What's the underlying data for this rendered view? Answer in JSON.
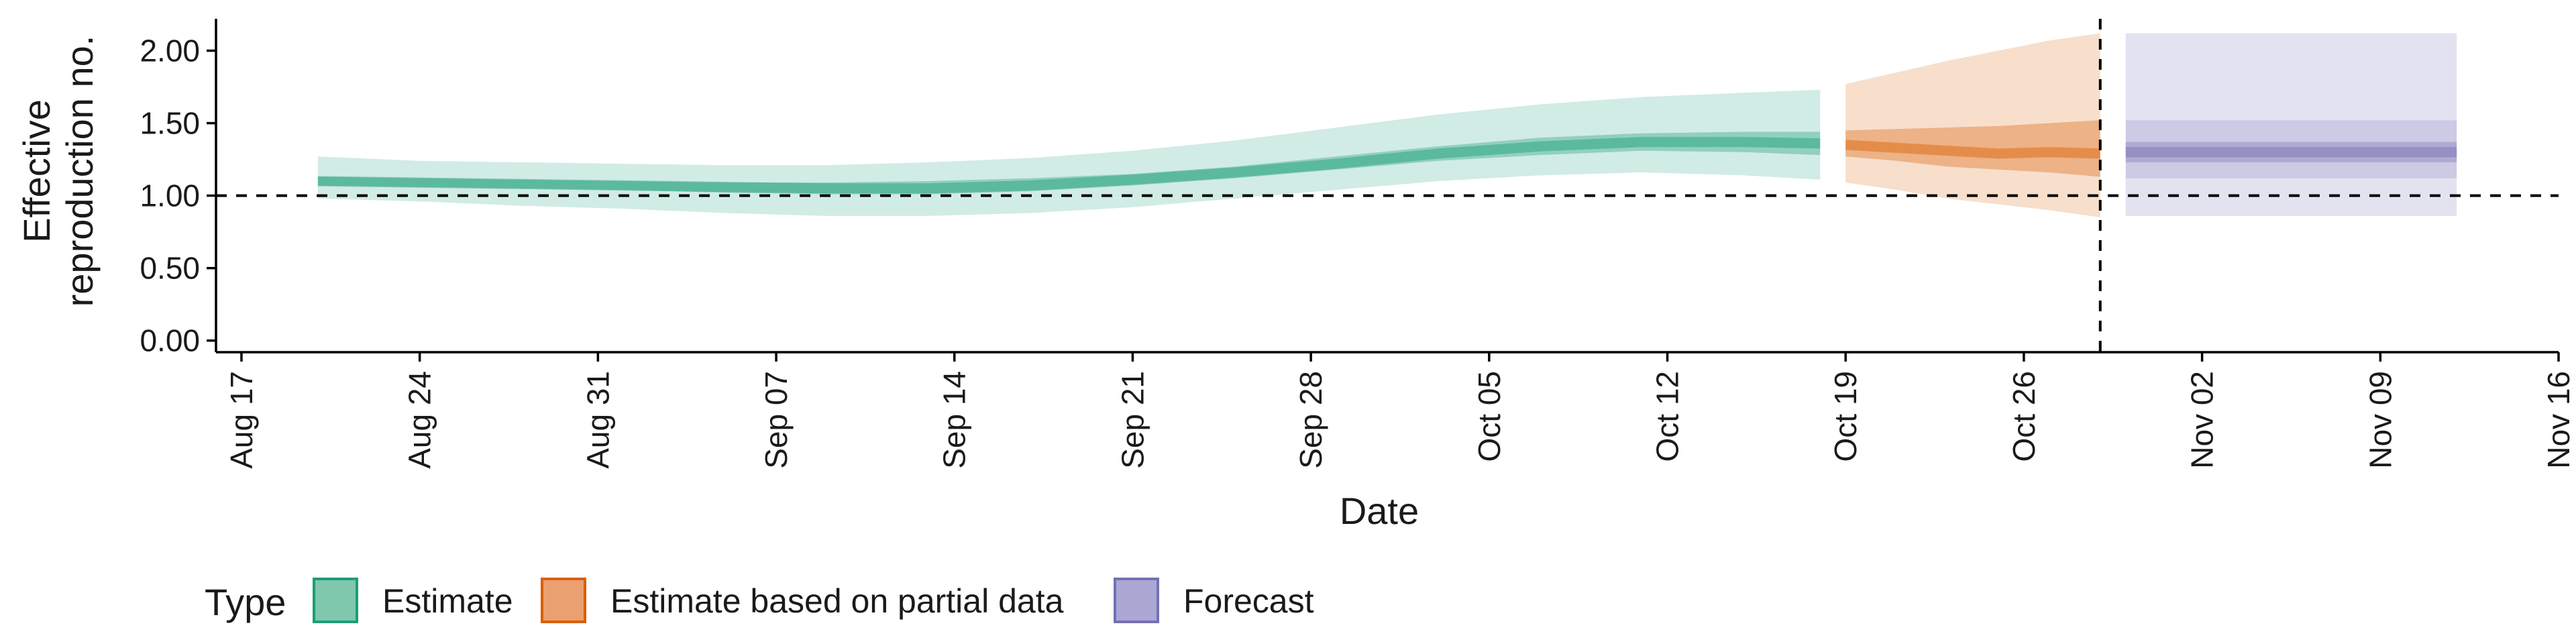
{
  "chart_data": {
    "type": "area",
    "xlabel": "Date",
    "ylabel_lines": [
      "Effective",
      "reproduction no."
    ],
    "ylim": [
      -0.08,
      2.22
    ],
    "yticks": [
      0.0,
      0.5,
      1.0,
      1.5,
      2.0
    ],
    "ytick_labels": [
      "0.00",
      "0.50",
      "1.00",
      "1.50",
      "2.00"
    ],
    "xlim": [
      "2020-08-16",
      "2020-11-16"
    ],
    "xticks": [
      "2020-08-17",
      "2020-08-24",
      "2020-08-31",
      "2020-09-07",
      "2020-09-14",
      "2020-09-21",
      "2020-09-28",
      "2020-10-05",
      "2020-10-12",
      "2020-10-19",
      "2020-10-26",
      "2020-11-02",
      "2020-11-09",
      "2020-11-16"
    ],
    "xtick_labels": [
      "Aug 17",
      "Aug 24",
      "Aug 31",
      "Sep 07",
      "Sep 14",
      "Sep 21",
      "Sep 28",
      "Oct 05",
      "Oct 12",
      "Oct 19",
      "Oct 26",
      "Nov 02",
      "Nov 09",
      "Nov 16"
    ],
    "reference_line_y": 1.0,
    "vertical_line_x": "2020-10-29",
    "legend": {
      "title": "Type",
      "position": "bottom",
      "entries": [
        {
          "label": "Estimate",
          "fill": "#7fc8ae",
          "stroke": "#1b9e77"
        },
        {
          "label": "Estimate based on partial data",
          "fill": "#eba071",
          "stroke": "#d95f02"
        },
        {
          "label": "Forecast",
          "fill": "#aba8d4",
          "stroke": "#7570b3"
        }
      ]
    },
    "series": [
      {
        "name": "Estimate",
        "color": "#1b9e77",
        "x": [
          "2020-08-20",
          "2020-08-24",
          "2020-08-28",
          "2020-09-01",
          "2020-09-05",
          "2020-09-09",
          "2020-09-13",
          "2020-09-17",
          "2020-09-21",
          "2020-09-25",
          "2020-09-29",
          "2020-10-03",
          "2020-10-07",
          "2020-10-11",
          "2020-10-15",
          "2020-10-18"
        ],
        "median": [
          1.1,
          1.09,
          1.08,
          1.07,
          1.06,
          1.05,
          1.05,
          1.07,
          1.11,
          1.16,
          1.22,
          1.29,
          1.34,
          1.37,
          1.37,
          1.36
        ],
        "lower_50": [
          1.07,
          1.06,
          1.05,
          1.04,
          1.02,
          1.01,
          1.01,
          1.03,
          1.07,
          1.12,
          1.18,
          1.24,
          1.28,
          1.31,
          1.3,
          1.28
        ],
        "upper_50": [
          1.13,
          1.12,
          1.11,
          1.1,
          1.09,
          1.09,
          1.1,
          1.12,
          1.15,
          1.2,
          1.27,
          1.34,
          1.4,
          1.43,
          1.44,
          1.44
        ],
        "lower_90": [
          0.98,
          0.96,
          0.93,
          0.91,
          0.88,
          0.86,
          0.86,
          0.88,
          0.92,
          0.98,
          1.04,
          1.1,
          1.14,
          1.16,
          1.14,
          1.11
        ],
        "upper_90": [
          1.27,
          1.24,
          1.23,
          1.22,
          1.21,
          1.21,
          1.23,
          1.26,
          1.31,
          1.38,
          1.47,
          1.56,
          1.63,
          1.68,
          1.71,
          1.73
        ]
      },
      {
        "name": "Estimate based on partial data",
        "color": "#d95f02",
        "x": [
          "2020-10-19",
          "2020-10-21",
          "2020-10-23",
          "2020-10-25",
          "2020-10-27",
          "2020-10-29"
        ],
        "median": [
          1.35,
          1.33,
          1.31,
          1.29,
          1.3,
          1.29
        ],
        "lower_50": [
          1.27,
          1.24,
          1.2,
          1.18,
          1.16,
          1.13
        ],
        "upper_50": [
          1.45,
          1.46,
          1.47,
          1.48,
          1.5,
          1.52
        ],
        "lower_90": [
          1.09,
          1.04,
          0.98,
          0.94,
          0.9,
          0.85
        ],
        "upper_90": [
          1.77,
          1.85,
          1.93,
          2.0,
          2.07,
          2.12
        ]
      },
      {
        "name": "Forecast",
        "color": "#7570b3",
        "x": [
          "2020-10-30",
          "2020-11-12"
        ],
        "median": [
          1.3,
          1.3
        ],
        "lower_50": [
          1.23,
          1.23
        ],
        "upper_50": [
          1.37,
          1.37
        ],
        "lower_90": [
          1.12,
          1.12
        ],
        "upper_90": [
          1.52,
          1.52
        ],
        "lower_outer": [
          0.86,
          0.86
        ],
        "upper_outer": [
          2.12,
          2.12
        ]
      }
    ]
  }
}
